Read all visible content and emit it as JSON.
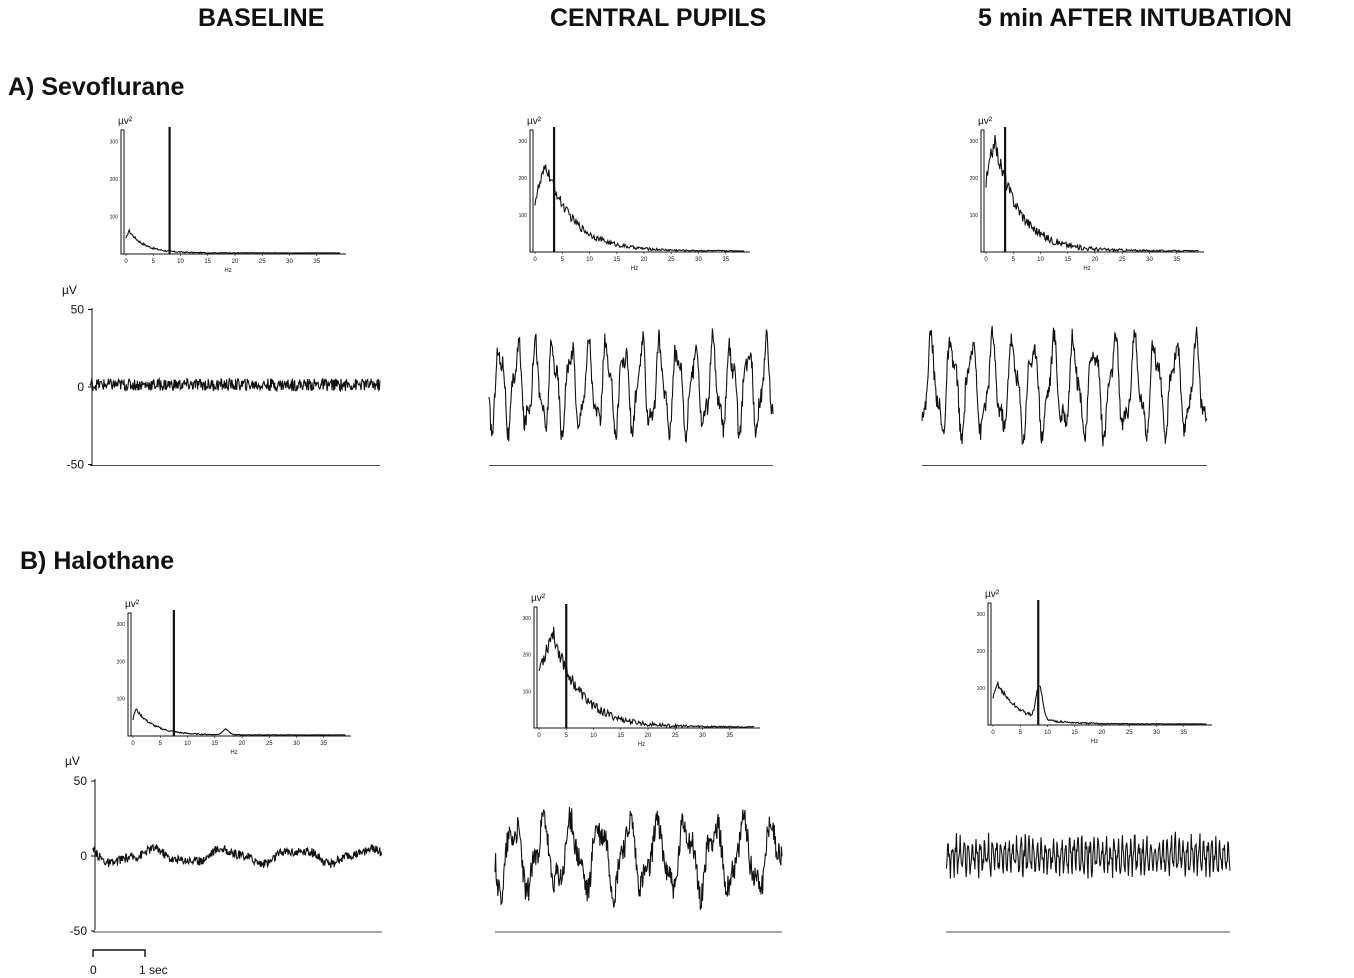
{
  "columns": [
    "BASELINE",
    "CENTRAL PUPILS",
    "5 min AFTER INTUBATION"
  ],
  "sections": [
    {
      "label": "A) Sevoflurane"
    },
    {
      "label": "B) Halothane"
    }
  ],
  "spectrum_axis": {
    "ylabel": "µv²",
    "yticks": [
      "100",
      "200",
      "300"
    ],
    "xticks": [
      "0",
      "5",
      "10",
      "15",
      "20",
      "25",
      "30",
      "35"
    ],
    "xlabel": "Hz"
  },
  "trace_axis": {
    "ylabel": "µV",
    "yticks": [
      "50",
      "0",
      "-50"
    ]
  },
  "scale_bar": {
    "start": "0",
    "end": "1 sec"
  },
  "chart_data": [
    {
      "type": "line",
      "panel": "A-baseline-spectrum",
      "xlabel": "Hz",
      "ylabel": "µv²",
      "xlim": [
        0,
        38
      ],
      "ylim": [
        0,
        330
      ],
      "marker_hz": 8,
      "peak_hz": 0.5,
      "peak_value": 60,
      "decay": 0.35,
      "noise": 8,
      "bump_hz": 0,
      "bump_value": 0
    },
    {
      "type": "line",
      "panel": "A-central-spectrum",
      "xlabel": "Hz",
      "ylabel": "µv²",
      "xlim": [
        0,
        38
      ],
      "ylim": [
        0,
        330
      ],
      "marker_hz": 3.5,
      "peak_hz": 2,
      "peak_value": 230,
      "decay": 0.2,
      "noise": 40,
      "bump_hz": 0,
      "bump_value": 0
    },
    {
      "type": "line",
      "panel": "A-intubation-spectrum",
      "xlabel": "Hz",
      "ylabel": "µv²",
      "xlim": [
        0,
        38
      ],
      "ylim": [
        0,
        330
      ],
      "marker_hz": 3.5,
      "peak_hz": 1.5,
      "peak_value": 300,
      "decay": 0.22,
      "noise": 55,
      "bump_hz": 0,
      "bump_value": 0
    },
    {
      "type": "line",
      "panel": "A-baseline-trace",
      "ylabel": "µV",
      "ylim": [
        -50,
        50
      ],
      "freq": 0,
      "amp": 3,
      "noise": 4
    },
    {
      "type": "line",
      "panel": "A-central-trace",
      "ylabel": "µV",
      "ylim": [
        -50,
        50
      ],
      "freq": 1.6,
      "amp": 24,
      "noise": 6
    },
    {
      "type": "line",
      "panel": "A-intubation-trace",
      "ylabel": "µV",
      "ylim": [
        -50,
        50
      ],
      "freq": 1.4,
      "amp": 26,
      "noise": 6
    },
    {
      "type": "line",
      "panel": "B-baseline-spectrum",
      "xlabel": "Hz",
      "ylabel": "µv²",
      "xlim": [
        0,
        38
      ],
      "ylim": [
        0,
        330
      ],
      "marker_hz": 7.5,
      "peak_hz": 0.5,
      "peak_value": 70,
      "decay": 0.3,
      "noise": 8,
      "bump_hz": 17,
      "bump_value": 15
    },
    {
      "type": "line",
      "panel": "B-central-spectrum",
      "xlabel": "Hz",
      "ylabel": "µv²",
      "xlim": [
        0,
        38
      ],
      "ylim": [
        0,
        330
      ],
      "marker_hz": 5,
      "peak_hz": 2.5,
      "peak_value": 260,
      "decay": 0.2,
      "noise": 60,
      "bump_hz": 0,
      "bump_value": 0
    },
    {
      "type": "line",
      "panel": "B-intubation-spectrum",
      "xlabel": "Hz",
      "ylabel": "µv²",
      "xlim": [
        0,
        38
      ],
      "ylim": [
        0,
        330
      ],
      "marker_hz": 8.3,
      "peak_hz": 0.8,
      "peak_value": 110,
      "decay": 0.25,
      "noise": 15,
      "bump_hz": 8.5,
      "bump_value": 90
    },
    {
      "type": "line",
      "panel": "B-baseline-trace",
      "ylabel": "µV",
      "ylim": [
        -50,
        50
      ],
      "freq": 0.4,
      "amp": 4,
      "noise": 3
    },
    {
      "type": "line",
      "panel": "B-central-trace",
      "ylabel": "µV",
      "ylim": [
        -50,
        50
      ],
      "freq": 1.0,
      "amp": 20,
      "noise": 9
    },
    {
      "type": "line",
      "panel": "B-intubation-trace",
      "ylabel": "µV",
      "ylim": [
        -50,
        50
      ],
      "freq": 7,
      "amp": 9,
      "noise": 5
    }
  ]
}
